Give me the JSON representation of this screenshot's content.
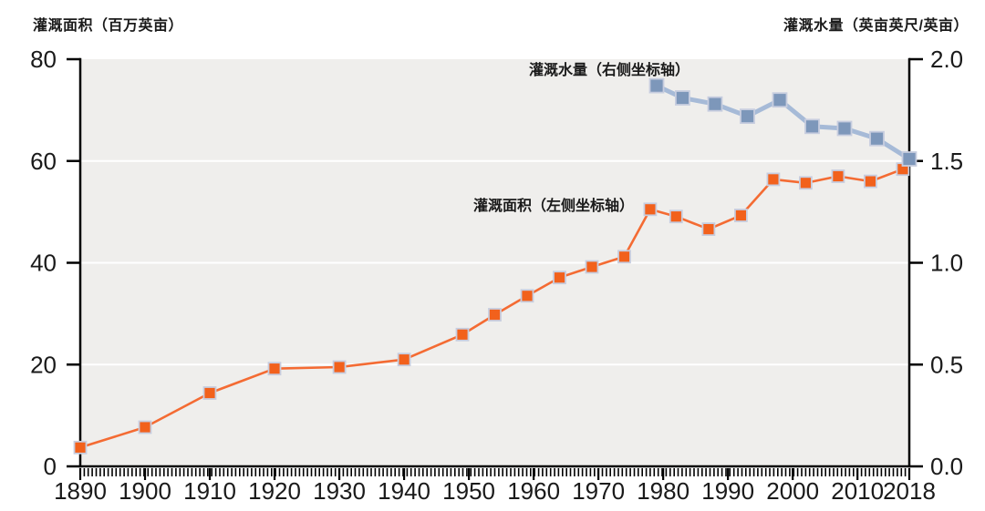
{
  "page": {
    "left_axis_title": "灌溉面积（百万英亩）",
    "right_axis_title": "灌溉水量（英亩英尺/英亩）"
  },
  "annotations": {
    "water_label": "灌溉水量（右侧坐标轴）",
    "area_label": "灌溉面积（左侧坐标轴）"
  },
  "colors": {
    "plot_background": "#EFEEEC",
    "gridline": "#FFFFFF",
    "axis": "#000000",
    "area_line": "#F46B33",
    "area_marker": "#F2611C",
    "water_line": "#A6BAD7",
    "water_marker": "#7D97BA",
    "marker_border": "#C7CDDF",
    "text": "#1a1a1a"
  },
  "chart_data": {
    "type": "line",
    "title": "",
    "grid": "horizontal white gridlines at left-axis 20/40/60",
    "legend_position": "inline annotations",
    "x_axis": {
      "range": [
        1890,
        2018
      ],
      "tick_labels": [
        1890,
        1900,
        1910,
        1920,
        1930,
        1940,
        1950,
        1960,
        1970,
        1980,
        1990,
        2000,
        2010,
        2018
      ],
      "minor_tick_intervals": 208
    },
    "left_axis": {
      "title": "灌溉面积（百万英亩）",
      "range": [
        0,
        80
      ],
      "ticks": [
        0,
        20,
        40,
        60,
        80
      ],
      "tick_labels": [
        "0",
        "20",
        "40",
        "60",
        "80"
      ]
    },
    "right_axis": {
      "title": "灌溉水量（英亩英尺/英亩）",
      "range": [
        0,
        2.0
      ],
      "ticks": [
        0,
        0.5,
        1.0,
        1.5,
        2.0
      ],
      "tick_labels": [
        "0.0",
        "0.5",
        "1.0",
        "1.5",
        "2.0"
      ]
    },
    "series": [
      {
        "name": "灌溉面积（左侧坐标轴）",
        "axis": "left",
        "marker": "square",
        "x": [
          1890,
          1900,
          1910,
          1920,
          1930,
          1940,
          1949,
          1954,
          1959,
          1964,
          1969,
          1974,
          1978,
          1982,
          1987,
          1992,
          1997,
          2002,
          2007,
          2012,
          2017
        ],
        "y": [
          3.7,
          7.7,
          14.4,
          19.2,
          19.5,
          21.0,
          25.9,
          29.8,
          33.5,
          37.1,
          39.2,
          41.2,
          50.5,
          49.1,
          46.6,
          49.3,
          56.4,
          55.7,
          57.0,
          56.0,
          58.4
        ]
      },
      {
        "name": "灌溉水量（右侧坐标轴）",
        "axis": "right",
        "marker": "square",
        "x": [
          1979,
          1983,
          1988,
          1993,
          1998,
          2003,
          2008,
          2013,
          2018
        ],
        "y": [
          1.87,
          1.81,
          1.78,
          1.72,
          1.8,
          1.67,
          1.66,
          1.61,
          1.51
        ]
      }
    ]
  }
}
